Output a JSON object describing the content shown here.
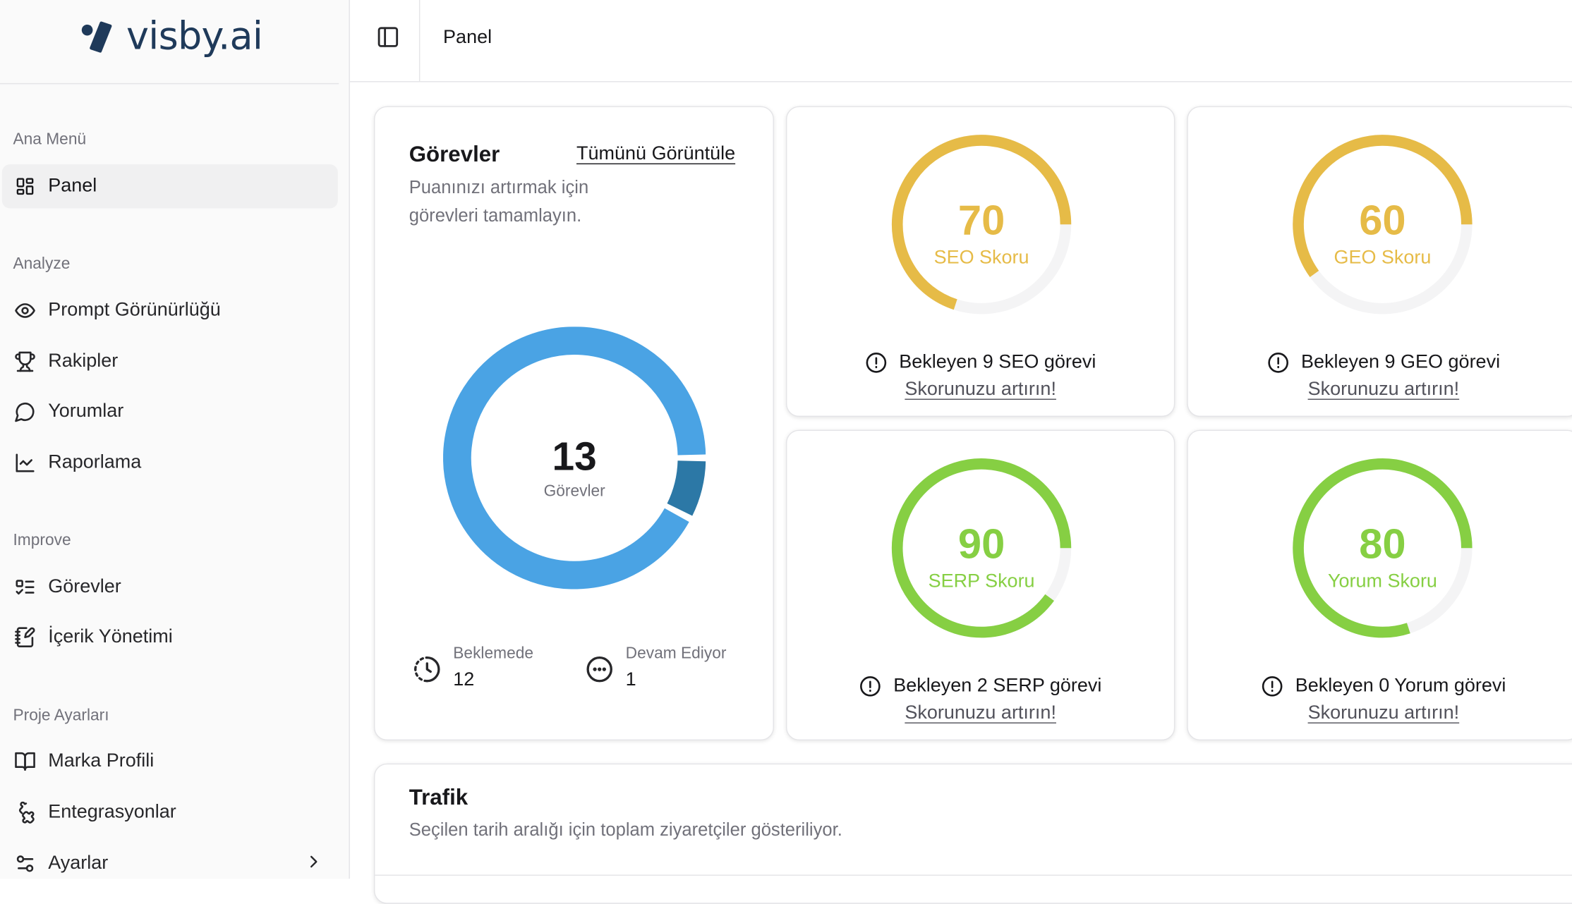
{
  "brand": {
    "name": "visby.ai"
  },
  "sidebar": {
    "groups": [
      {
        "label": "Ana Menü"
      },
      {
        "label": "Analyze"
      },
      {
        "label": "Improve"
      },
      {
        "label": "Proje Ayarları"
      }
    ],
    "items": [
      {
        "label": "Panel",
        "icon": "dashboard-icon",
        "active": true
      },
      {
        "label": "Prompt Görünürlüğü",
        "icon": "eye-icon"
      },
      {
        "label": "Rakipler",
        "icon": "trophy-icon"
      },
      {
        "label": "Yorumlar",
        "icon": "message-circle-icon"
      },
      {
        "label": "Raporlama",
        "icon": "line-chart-icon"
      },
      {
        "label": "Görevler",
        "icon": "list-todo-icon"
      },
      {
        "label": "İçerik Yönetimi",
        "icon": "notebook-pen-icon"
      },
      {
        "label": "Marka Profili",
        "icon": "book-open-icon"
      },
      {
        "label": "Entegrasyonlar",
        "icon": "puzzle-icon"
      },
      {
        "label": "Ayarlar",
        "icon": "settings-sliders-icon"
      }
    ]
  },
  "topbar": {
    "breadcrumb": "Panel",
    "toggle_icon": "panel-left-icon"
  },
  "tasks": {
    "title": "Görevler",
    "view_all": "Tümünü Görüntüle",
    "description": "Puanınızı artırmak için görevleri tamamlayın.",
    "total": "13",
    "total_label": "Görevler",
    "pending_label": "Beklemede",
    "pending_value": "12",
    "in_progress_label": "Devam Ediyor",
    "in_progress_value": "1",
    "colors": {
      "pending": "#4aa3e4",
      "in_progress": "#2c78a6"
    }
  },
  "scores": [
    {
      "value": "70",
      "label": "SEO Skoru",
      "fraction": 0.7,
      "color": "#e6bb47",
      "pending": "Bekleyen 9 SEO görevi",
      "cta": "Skorunuzu artırın!"
    },
    {
      "value": "60",
      "label": "GEO Skoru",
      "fraction": 0.6,
      "color": "#e6bb47",
      "pending": "Bekleyen 9 GEO görevi",
      "cta": "Skorunuzu artırın!"
    },
    {
      "value": "90",
      "label": "SERP Skoru",
      "fraction": 0.9,
      "color": "#86cf43",
      "pending": "Bekleyen 2 SERP görevi",
      "cta": "Skorunuzu artırın!"
    },
    {
      "value": "80",
      "label": "Yorum Skoru",
      "fraction": 0.8,
      "color": "#86cf43",
      "pending": "Bekleyen 0 Yorum görevi",
      "cta": "Skorunuzu artırın!"
    }
  ],
  "traffic": {
    "title": "Trafik",
    "description": "Seçilen tarih aralığı için toplam ziyaretçiler gösteriliyor."
  }
}
